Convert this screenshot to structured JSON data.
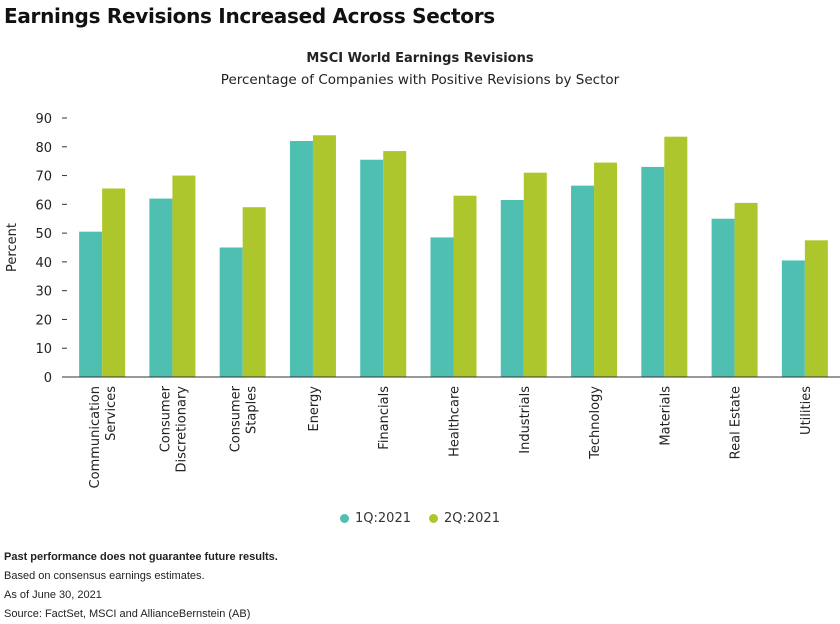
{
  "headline": "Earnings Revisions Increased Across Sectors",
  "colors": {
    "series1": "#4ebfb0",
    "series2": "#acc62c",
    "axis": "#333333"
  },
  "notes": {
    "disclaimer": "Past performance does not guarantee future results.",
    "line1": "Based on consensus earnings estimates.",
    "line2": "As of June 30, 2021",
    "source": "Source: FactSet, MSCI and AllianceBernstein (AB)"
  },
  "chart_data": {
    "type": "bar",
    "title": "MSCI World Earnings Revisions",
    "subtitle": "Percentage of Companies with Positive Revisions by Sector",
    "ylabel": "Percent",
    "xlabel": "",
    "ylim": [
      0,
      90
    ],
    "yticks": [
      0,
      10,
      20,
      30,
      40,
      50,
      60,
      70,
      80,
      90
    ],
    "grid": false,
    "legend_position": "bottom",
    "categories": [
      [
        "Communication",
        "Services"
      ],
      [
        "Consumer",
        "Discretionary"
      ],
      [
        "Consumer",
        "Staples"
      ],
      [
        "Energy"
      ],
      [
        "Financials"
      ],
      [
        "Healthcare"
      ],
      [
        "Industrials"
      ],
      [
        "Technology"
      ],
      [
        "Materials"
      ],
      [
        "Real Estate"
      ],
      [
        "Utilities"
      ]
    ],
    "series": [
      {
        "name": "1Q:2021",
        "values": [
          50.5,
          62,
          45,
          82,
          75.5,
          48.5,
          61.5,
          66.5,
          73,
          55,
          40.5
        ]
      },
      {
        "name": "2Q:2021",
        "values": [
          65.5,
          70,
          59,
          84,
          78.5,
          63,
          71,
          74.5,
          83.5,
          60.5,
          47.5
        ]
      }
    ]
  }
}
